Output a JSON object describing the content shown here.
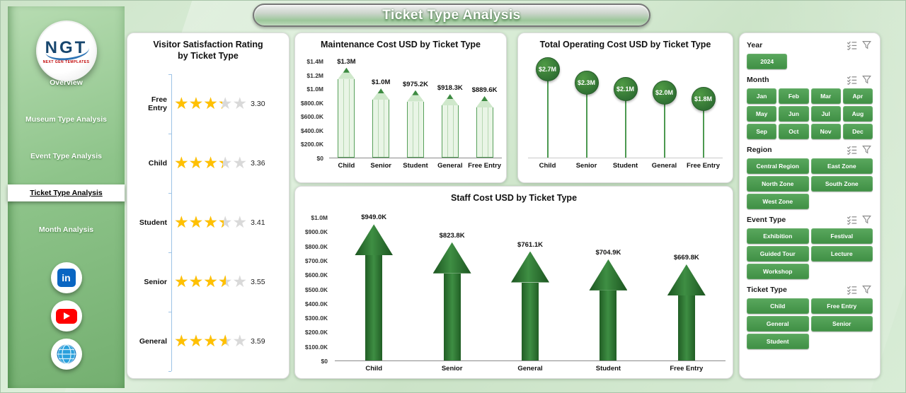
{
  "page": {
    "title": "Ticket Type Analysis"
  },
  "sidebar": {
    "logo_text": "NGT",
    "logo_sub": "NEXT GEN TEMPLATES",
    "linkedin_glyph": "in",
    "items": [
      {
        "label": "Overview",
        "active": false
      },
      {
        "label": "Museum Type Analysis",
        "active": false
      },
      {
        "label": "Event Type Analysis",
        "active": false
      },
      {
        "label": "Ticket Type Analysis",
        "active": true
      },
      {
        "label": "Month Analysis",
        "active": false
      }
    ]
  },
  "colors": {
    "button_green": "#4a9e50",
    "dark_green": "#2e7031",
    "pencil_fill": "#e9f5e6",
    "star_gold": "#ffc000",
    "page_bg": "#d5e9d3"
  },
  "chart_data": [
    {
      "name": "visitor-satisfaction",
      "type": "bar",
      "orientation": "horizontal-star-rating",
      "title": "Visitor Satisfaction Rating by Ticket Type",
      "categories": [
        "Free Entry",
        "Child",
        "Student",
        "Senior",
        "General"
      ],
      "values": [
        3.3,
        3.36,
        3.41,
        3.55,
        3.59
      ],
      "value_labels": [
        "3.30",
        "3.36",
        "3.41",
        "3.55",
        "3.59"
      ],
      "max": 5,
      "star_char": "★"
    },
    {
      "name": "maintenance-cost",
      "type": "bar",
      "title": "Maintenance Cost USD by Ticket Type",
      "categories": [
        "Child",
        "Senior",
        "Student",
        "General",
        "Free Entry"
      ],
      "values_k": [
        1300,
        1000,
        975.2,
        918.3,
        889.6
      ],
      "value_labels": [
        "$1.3M",
        "$1.0M",
        "$975.2K",
        "$918.3K",
        "$889.6K"
      ],
      "y_ticks": [
        "$1.4M",
        "$1.2M",
        "$1.0M",
        "$800.0K",
        "$600.0K",
        "$400.0K",
        "$200.0K",
        "$0"
      ],
      "y_tick_values_k": [
        1400,
        1200,
        1000,
        800,
        600,
        400,
        200,
        0
      ],
      "ylim_k": [
        0,
        1400
      ],
      "grid": false
    },
    {
      "name": "total-operating-cost",
      "type": "lollipop",
      "title": "Total Operating Cost USD by Ticket Type",
      "categories": [
        "Child",
        "Senior",
        "Student",
        "General",
        "Free Entry"
      ],
      "values_m": [
        2.7,
        2.3,
        2.1,
        2.0,
        1.8
      ],
      "value_labels": [
        "$2.7M",
        "$2.3M",
        "$2.1M",
        "$2.0M",
        "$1.8M"
      ],
      "ylim_m": [
        0,
        3.1
      ],
      "grid": false
    },
    {
      "name": "staff-cost",
      "type": "bar",
      "title": "Staff Cost USD by Ticket Type",
      "categories": [
        "Child",
        "Senior",
        "General",
        "Student",
        "Free Entry"
      ],
      "values_k": [
        949.0,
        823.8,
        761.1,
        704.9,
        669.8
      ],
      "value_labels": [
        "$949.0K",
        "$823.8K",
        "$761.1K",
        "$704.9K",
        "$669.8K"
      ],
      "y_ticks": [
        "$1.0M",
        "$900.0K",
        "$800.0K",
        "$700.0K",
        "$600.0K",
        "$500.0K",
        "$400.0K",
        "$300.0K",
        "$200.0K",
        "$100.0K",
        "$0"
      ],
      "y_tick_values_k": [
        1000,
        900,
        800,
        700,
        600,
        500,
        400,
        300,
        200,
        100,
        0
      ],
      "ylim_k": [
        0,
        1000
      ],
      "grid": false
    }
  ],
  "filters": [
    {
      "label": "Year",
      "cols": 3,
      "options": [
        "2024"
      ]
    },
    {
      "label": "Month",
      "cols": 4,
      "options": [
        "Jan",
        "Feb",
        "Mar",
        "Apr",
        "May",
        "Jun",
        "Jul",
        "Aug",
        "Sep",
        "Oct",
        "Nov",
        "Dec"
      ]
    },
    {
      "label": "Region",
      "cols": 2,
      "options": [
        "Central Region",
        "East Zone",
        "North Zone",
        "South Zone",
        "West Zone"
      ]
    },
    {
      "label": "Event Type",
      "cols": 2,
      "options": [
        "Exhibition",
        "Festival",
        "Guided Tour",
        "Lecture",
        "Workshop"
      ]
    },
    {
      "label": "Ticket Type",
      "cols": 2,
      "options": [
        "Child",
        "Free Entry",
        "General",
        "Senior",
        "Student"
      ]
    }
  ]
}
